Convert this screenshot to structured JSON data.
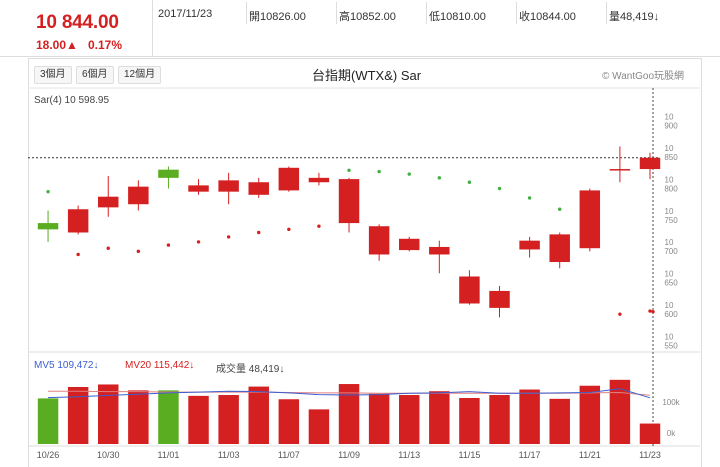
{
  "header": {
    "price": "10 844.00",
    "change": "18.00▲",
    "change_pct": "0.17%",
    "date": "2017/11/23",
    "open": "開10826.00",
    "high": "高10852.00",
    "low": "低10810.00",
    "close": "收10844.00",
    "volume": "量48,419↓"
  },
  "range_buttons": [
    "3個月",
    "6個月",
    "12個月"
  ],
  "chart_title": "台指期(WTX&) Sar",
  "copyright": "© WantGoo玩股網",
  "indicators": {
    "sar": "Sar(4) 10 598.95",
    "mv5": "MV5 109,472↓",
    "mv20": "MV20 115,442↓",
    "vol": "成交量 48,419↓"
  },
  "colors": {
    "up": "#d42020",
    "down": "#5aad20",
    "sar_up": "#d42020",
    "sar_down": "#40b040",
    "mv5": "#3a5fd0",
    "mv20": "#e08080"
  },
  "chart_data": {
    "type": "candlestick",
    "title": "台指期(WTX&) Sar",
    "ylim": [
      10530,
      10920
    ],
    "y_ticks": [
      {
        "label": "10 900",
        "value": 10900
      },
      {
        "label": "10 850",
        "value": 10850
      },
      {
        "label": "10 800",
        "value": 10800
      },
      {
        "label": "10 750",
        "value": 10750
      },
      {
        "label": "10 700",
        "value": 10700
      },
      {
        "label": "10 650",
        "value": 10650
      },
      {
        "label": "10 600",
        "value": 10600
      },
      {
        "label": "10 550",
        "value": 10550
      }
    ],
    "x_labels": [
      "10/26",
      "10/30",
      "11/01",
      "11/03",
      "11/07",
      "11/09",
      "11/13",
      "11/15",
      "11/17",
      "11/21",
      "11/23"
    ],
    "x_label_positions": [
      0,
      2,
      4,
      6,
      8,
      10,
      12,
      14,
      16,
      18,
      20
    ],
    "candles": [
      {
        "open": 10740,
        "close": 10730,
        "high": 10760,
        "low": 10710
      },
      {
        "open": 10725,
        "close": 10762,
        "high": 10768,
        "low": 10722
      },
      {
        "open": 10765,
        "close": 10782,
        "high": 10815,
        "low": 10750
      },
      {
        "open": 10770,
        "close": 10798,
        "high": 10808,
        "low": 10760
      },
      {
        "open": 10825,
        "close": 10812,
        "high": 10830,
        "low": 10795
      },
      {
        "open": 10790,
        "close": 10800,
        "high": 10810,
        "low": 10785
      },
      {
        "open": 10790,
        "close": 10808,
        "high": 10820,
        "low": 10770
      },
      {
        "open": 10785,
        "close": 10805,
        "high": 10812,
        "low": 10780
      },
      {
        "open": 10792,
        "close": 10828,
        "high": 10830,
        "low": 10790
      },
      {
        "open": 10805,
        "close": 10812,
        "high": 10820,
        "low": 10800
      },
      {
        "open": 10740,
        "close": 10810,
        "high": 10812,
        "low": 10725
      },
      {
        "open": 10690,
        "close": 10735,
        "high": 10738,
        "low": 10680
      },
      {
        "open": 10697,
        "close": 10715,
        "high": 10718,
        "low": 10695
      },
      {
        "open": 10690,
        "close": 10702,
        "high": 10712,
        "low": 10660
      },
      {
        "open": 10612,
        "close": 10655,
        "high": 10665,
        "low": 10610
      },
      {
        "open": 10605,
        "close": 10632,
        "high": 10640,
        "low": 10590
      },
      {
        "open": 10698,
        "close": 10712,
        "high": 10718,
        "low": 10685
      },
      {
        "open": 10678,
        "close": 10722,
        "high": 10725,
        "low": 10668
      },
      {
        "open": 10700,
        "close": 10792,
        "high": 10795,
        "low": 10695
      },
      {
        "open": 10826,
        "close": 10826,
        "high": 10862,
        "low": 10805
      },
      {
        "open": 10826,
        "close": 10844,
        "high": 10852,
        "low": 10810
      }
    ],
    "sar": [
      10790,
      10690,
      10700,
      10695,
      10705,
      10710,
      10718,
      10725,
      10730,
      10735,
      10824,
      10822,
      10818,
      10812,
      10805,
      10795,
      10780,
      10762,
      10740,
      10595,
      10600,
      10598.95
    ],
    "sar_positions": [
      0,
      1,
      2,
      3,
      4,
      5,
      6,
      7,
      8,
      9,
      10,
      11,
      12,
      13,
      14,
      15,
      16,
      17,
      18,
      19,
      20,
      20.3
    ],
    "volume": {
      "ylim": [
        0,
        180000
      ],
      "ticks": [
        {
          "label": "100k",
          "value": 100000
        },
        {
          "label": "0k",
          "value": 0
        }
      ],
      "values": [
        108000,
        135000,
        141000,
        127000,
        127000,
        114000,
        116000,
        136000,
        106000,
        82000,
        142000,
        119000,
        116000,
        125000,
        109000,
        116000,
        129000,
        107000,
        138000,
        152000,
        48419
      ],
      "mv5": [
        110000,
        112000,
        115000,
        118000,
        121000,
        123000,
        125000,
        124000,
        121000,
        117000,
        116000,
        117000,
        120000,
        121000,
        124000,
        120000,
        120000,
        121000,
        122000,
        131000,
        109472
      ],
      "mv20": [
        125000,
        125000,
        124000,
        124000,
        123000,
        123000,
        123000,
        123000,
        122000,
        121000,
        121000,
        120000,
        120000,
        120000,
        120000,
        120000,
        120000,
        120000,
        121000,
        122000,
        115442
      ]
    }
  }
}
